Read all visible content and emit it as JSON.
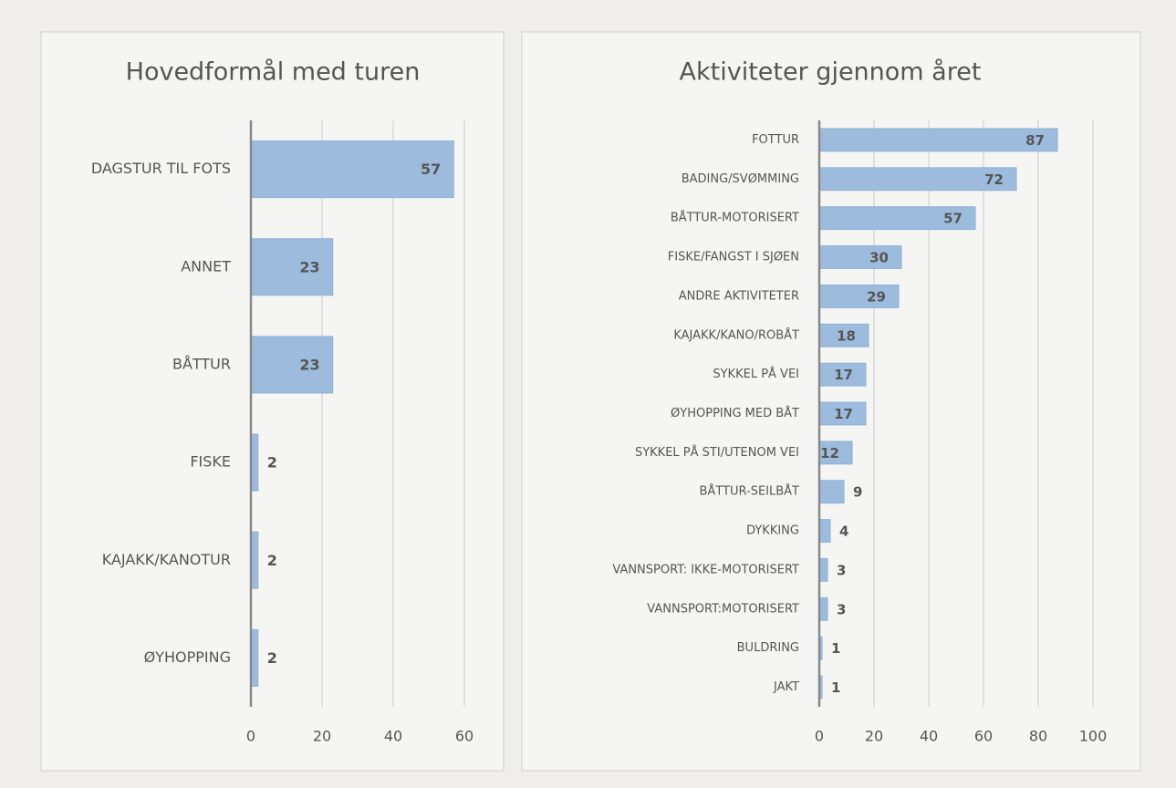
{
  "chart_data": [
    {
      "type": "barh",
      "title": "Hovedformål med turen",
      "categories": [
        "DAGSTUR TIL FOTS",
        "ANNET",
        "BÅTTUR",
        "FISKE",
        "KAJAKK/KANOTUR",
        "ØYHOPPING"
      ],
      "values": [
        57,
        23,
        23,
        2,
        2,
        2
      ],
      "color": "#9dbcdd",
      "xlim": [
        0,
        60
      ],
      "xticks": [
        0,
        20,
        40,
        60
      ],
      "grid": true
    },
    {
      "type": "barh",
      "title": "Aktiviteter gjennom året",
      "categories": [
        "FOTTUR",
        "BADING/SVØMMING",
        "BÅTTUR-MOTORISERT",
        "FISKE/FANGST I SJØEN",
        "ANDRE AKTIVITETER",
        "KAJAKK/KANO/ROBÅT",
        "SYKKEL PÅ VEI",
        "ØYHOPPING MED BÅT",
        "SYKKEL PÅ STI/UTENOM VEI",
        "BÅTTUR-SEILBÅT",
        "DYKKING",
        "VANNSPORT: IKKE-MOTORISERT",
        "VANNSPORT:MOTORISERT",
        "BULDRING",
        "JAKT"
      ],
      "values": [
        87,
        72,
        57,
        30,
        29,
        18,
        17,
        17,
        12,
        9,
        4,
        3,
        3,
        1,
        1
      ],
      "color": "#9dbcdd",
      "xlim": [
        0,
        100
      ],
      "xticks": [
        0,
        20,
        40,
        60,
        80,
        100
      ],
      "grid": true
    }
  ]
}
